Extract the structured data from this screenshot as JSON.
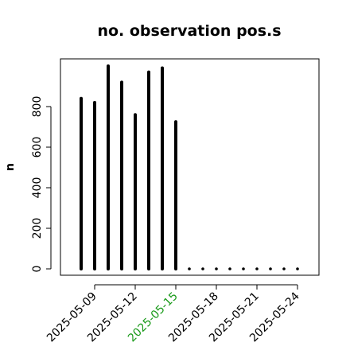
{
  "chart_data": {
    "type": "bar",
    "title": "no. observation pos.s",
    "xlabel": "",
    "ylabel": "n",
    "y_ticks": [
      0,
      200,
      400,
      600,
      800
    ],
    "ylim": [
      0,
      1000
    ],
    "grid": false,
    "legend": "none",
    "x_tick_labels": [
      "2025-05-09",
      "2025-05-12",
      "2025-05-15",
      "2025-05-18",
      "2025-05-21",
      "2025-05-24"
    ],
    "x_tick_colors": [
      "#000000",
      "#000000",
      "#1a9a1a",
      "#000000",
      "#000000",
      "#000000"
    ],
    "categories": [
      "2025-05-08",
      "2025-05-09",
      "2025-05-10",
      "2025-05-11",
      "2025-05-12",
      "2025-05-13",
      "2025-05-14",
      "2025-05-15",
      "2025-05-16",
      "2025-05-17",
      "2025-05-18",
      "2025-05-19",
      "2025-05-20",
      "2025-05-21",
      "2025-05-22",
      "2025-05-23",
      "2025-05-24"
    ],
    "values": [
      840,
      820,
      1000,
      920,
      760,
      970,
      990,
      725,
      0,
      0,
      0,
      0,
      0,
      0,
      0,
      0,
      0
    ],
    "bar_color": "#000000"
  }
}
